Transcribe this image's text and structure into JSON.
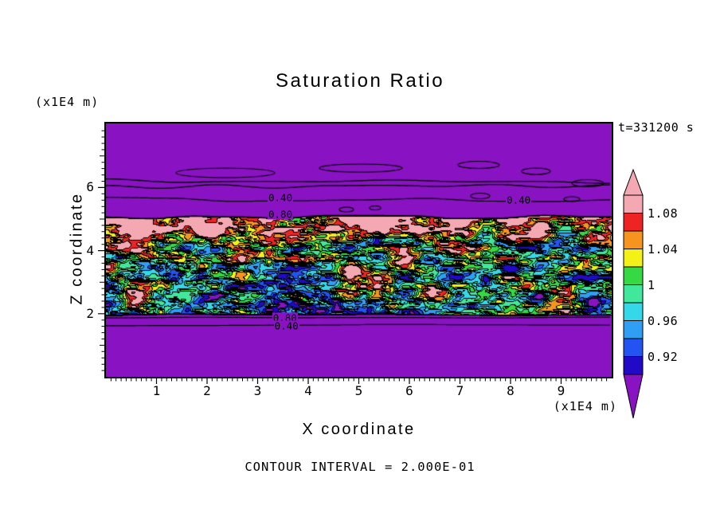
{
  "figure": {
    "title": "Saturation Ratio",
    "timestamp": "t=331200 s",
    "contour_interval_label": "CONTOUR INTERVAL = 2.000E-01"
  },
  "axes": {
    "x_label": "X coordinate",
    "y_label": "Z coordinate",
    "x_unit_label": "(x1E4 m)",
    "y_unit_label": "(x1E4 m)",
    "x_tick_labels": [
      1,
      2,
      3,
      4,
      5,
      6,
      7,
      8,
      9
    ],
    "y_tick_labels": [
      2,
      4,
      6
    ],
    "x_range": [
      0,
      10
    ],
    "z_range": [
      0,
      8.03
    ]
  },
  "chart_data": {
    "type": "heatmap",
    "subtype": "filled-contour",
    "title": "Saturation Ratio",
    "xlabel": "X coordinate (x1E4 m)",
    "ylabel": "Z coordinate (x1E4 m)",
    "time_annotation": "t=331200 s",
    "x_range": [
      0,
      10
    ],
    "z_range": [
      0,
      8.03
    ],
    "fill_levels": [
      0.9,
      0.92,
      0.94,
      0.96,
      0.98,
      1.0,
      1.02,
      1.04,
      1.06,
      1.08
    ],
    "fill_colors": [
      "#8912c2",
      "#2209c8",
      "#2353f2",
      "#2f9ff5",
      "#35d8e8",
      "#41e89b",
      "#36d944",
      "#f4f118",
      "#f79420",
      "#ee2424",
      "#f3a8b2"
    ],
    "colorbar": {
      "orientation": "vertical",
      "position": "right",
      "tick_labels": [
        "1.08",
        "1.04",
        "1",
        "0.96",
        "0.92"
      ],
      "extend": "both",
      "over_color": "#f3a8b2",
      "under_color": "#8912c2"
    },
    "line_contours": {
      "interval": 0.2,
      "labels": [
        {
          "text": "0.40",
          "x": 3.45,
          "z": 5.68
        },
        {
          "text": "0.40",
          "x": 8.16,
          "z": 5.61
        },
        {
          "text": "0.80",
          "x": 3.45,
          "z": 5.15
        },
        {
          "text": "0.80",
          "x": 3.54,
          "z": 1.88
        },
        {
          "text": "0.40",
          "x": 3.57,
          "z": 1.62
        }
      ]
    },
    "field": {
      "description": "Saturation ratio field at t=331200 s: subsaturated purple background (S < 0.9) above z ~ 5.1e4 m and below z ~ 2.0e4 m; turbulent saturated band (S ~ 0.9-1.12, green/yellow/orange/red with cyan-blue pockets) between z ~ 2.0e4 and 5.1e4 m; supersaturated pink/red layer along the band top (z ~ 4.6-5.1e4 m); labeled line contours S=0.40 and S=0.80 in the gradient zones bounding the band, line contour interval 0.2.",
      "band_z_bottom": 1.97,
      "band_z_top": 5.07,
      "pink_layer_z_start": 4.55,
      "band_mean": 1.0,
      "band_fluctuation": 0.1
    }
  }
}
